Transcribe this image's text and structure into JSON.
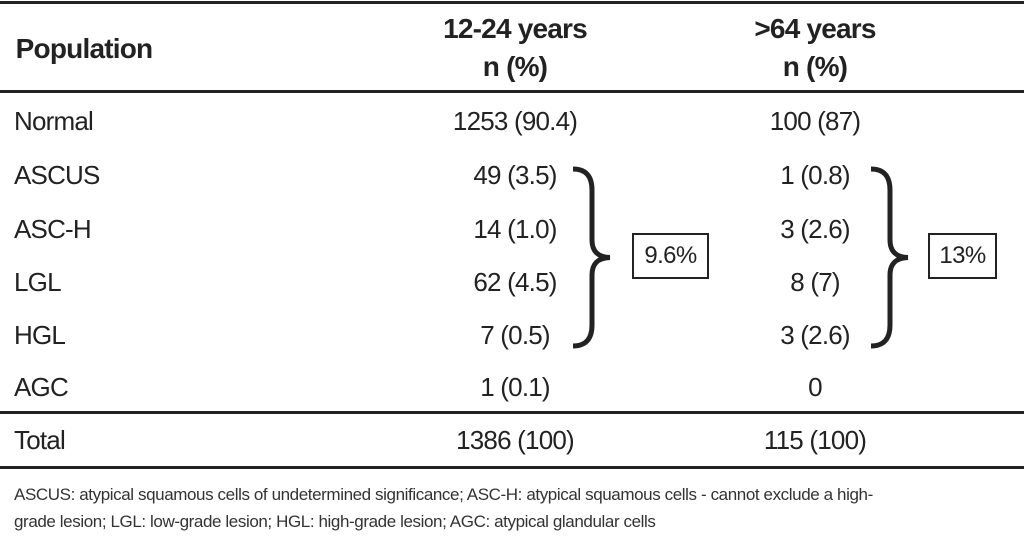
{
  "table": {
    "header": {
      "population": "Population",
      "col1_line1": "12-24 years",
      "col1_line2": "n (%)",
      "col2_line1": ">64 years",
      "col2_line2": "n (%)"
    },
    "rows": [
      {
        "label": "Normal",
        "c1": "1253 (90.4)",
        "c2": "100 (87)"
      },
      {
        "label": "ASCUS",
        "c1": "49 (3.5)",
        "c2": "1 (0.8)"
      },
      {
        "label": "ASC-H",
        "c1": "14 (1.0)",
        "c2": "3 (2.6)"
      },
      {
        "label": "LGL",
        "c1": "62 (4.5)",
        "c2": "8 (7)"
      },
      {
        "label": "HGL",
        "c1": "7 (0.5)",
        "c2": "3 (2.6)"
      },
      {
        "label": "AGC",
        "c1": "1 (0.1)",
        "c2": "0"
      }
    ],
    "total": {
      "label": "Total",
      "c1": "1386 (100)",
      "c2": "115 (100)"
    },
    "bracket_totals": {
      "c1": "9.6%",
      "c2": "13%"
    },
    "footnote_line1": "ASCUS: atypical squamous cells of undetermined significance; ASC-H: atypical squamous cells - cannot exclude a high-",
    "footnote_line2": "grade lesion; LGL: low-grade lesion; HGL: high-grade lesion; AGC: atypical glandular cells"
  }
}
